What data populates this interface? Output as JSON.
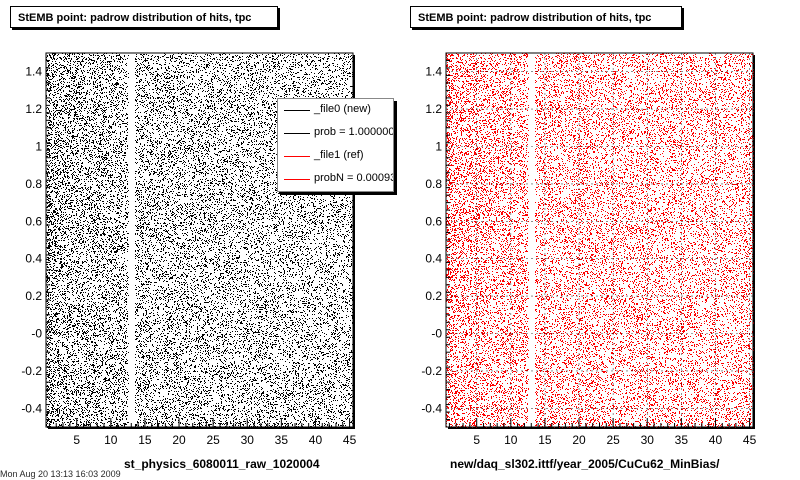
{
  "footer": {
    "date_text": "Mon Aug 20 13:13 16:03 2009"
  },
  "chart_data": [
    {
      "type": "scatter",
      "title": "StEMB point: padrow distribution of hits, tpc",
      "xlabel": "st_physics_6080011_raw_1020004",
      "ylabel": "",
      "xlim": [
        0.5,
        45.5
      ],
      "ylim": [
        -0.5,
        1.5
      ],
      "x_ticks": [
        5,
        10,
        15,
        20,
        25,
        30,
        35,
        40,
        45
      ],
      "x_tick_labels": [
        "5",
        "10",
        "15",
        "20",
        "25",
        "30",
        "35",
        "40",
        "45"
      ],
      "y_ticks": [
        -0.4,
        -0.2,
        0.0,
        0.2,
        0.4,
        0.6,
        0.8,
        1.0,
        1.2,
        1.4
      ],
      "y_tick_labels": [
        "-0.4",
        "-0.2",
        "-0",
        "0.2",
        "0.4",
        "0.6",
        "0.8",
        "1",
        "1.2",
        "1.4"
      ],
      "marker_color": "#000000",
      "grid": false,
      "gap_padrow": 13,
      "legend": {
        "placement": "top-right",
        "entries": [
          {
            "label": "_file0 (new)",
            "color": "#000000"
          },
          {
            "label": "prob = 1.000000",
            "color": "#000000"
          },
          {
            "label": "_file1 (ref)",
            "color": "#ff0000"
          },
          {
            "label": "probN = 0.000938",
            "color": "#ff0000"
          }
        ]
      }
    },
    {
      "type": "scatter",
      "title": "StEMB point: padrow distribution of hits, tpc",
      "xlabel": "new/daq_sl302.ittf/year_2005/CuCu62_MinBias/",
      "ylabel": "",
      "xlim": [
        0.5,
        45.5
      ],
      "ylim": [
        -0.5,
        1.5
      ],
      "x_ticks": [
        5,
        10,
        15,
        20,
        25,
        30,
        35,
        40,
        45
      ],
      "x_tick_labels": [
        "5",
        "10",
        "15",
        "20",
        "25",
        "30",
        "35",
        "40",
        "45"
      ],
      "y_ticks": [
        -0.4,
        -0.2,
        0.0,
        0.2,
        0.4,
        0.6,
        0.8,
        1.0,
        1.2,
        1.4
      ],
      "y_tick_labels": [
        "-0.4",
        "-0.2",
        "-0",
        "0.2",
        "0.4",
        "0.6",
        "0.8",
        "1",
        "1.2",
        "1.4"
      ],
      "marker_color": "#ff0000",
      "grid": true,
      "gap_padrow": 13
    }
  ]
}
